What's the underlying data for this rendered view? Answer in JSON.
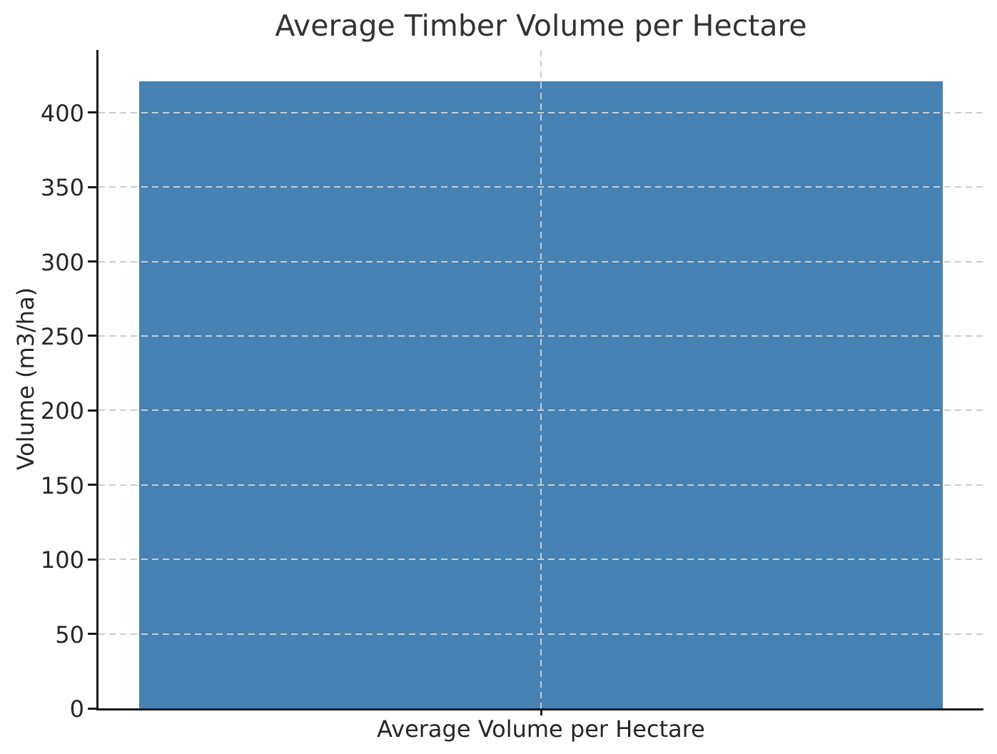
{
  "chart_data": {
    "type": "bar",
    "title": "Average Timber Volume per Hectare",
    "ylabel": "Volume (m3/ha)",
    "xlabel": "",
    "categories": [
      "Average Volume per Hectare"
    ],
    "values": [
      421
    ],
    "ylim": [
      0,
      442
    ],
    "yticks": [
      0,
      50,
      100,
      150,
      200,
      250,
      300,
      350,
      400
    ],
    "grid": {
      "style": "dashed",
      "horizontal": true,
      "vertical_center_line": true,
      "drawn_above_bar": true
    },
    "legend": "none",
    "colors": {
      "bar": "#4682b4",
      "grid": "#cccccc",
      "text": "#262626",
      "title_text": "#333333",
      "spine": "#1a1a1a",
      "background": "#ffffff"
    }
  }
}
